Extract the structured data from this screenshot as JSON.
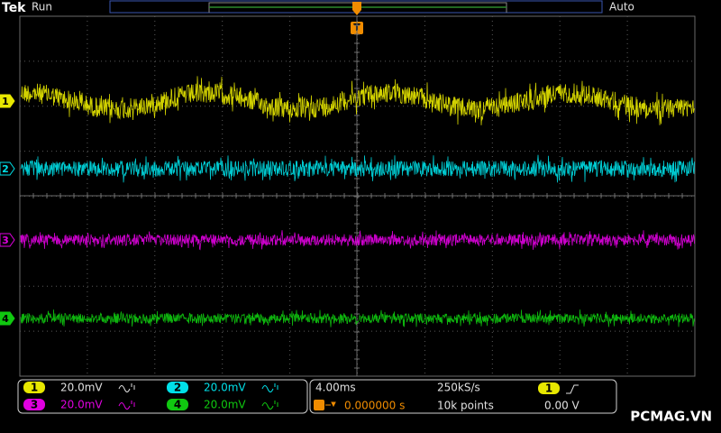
{
  "header": {
    "brand": "Tek",
    "status": "Run",
    "trigger_marker": "T",
    "trigger_mode": "Auto"
  },
  "channels": [
    {
      "marker": "1",
      "scale": "20.0mV",
      "color": "#e8e800"
    },
    {
      "marker": "2",
      "scale": "20.0mV",
      "color": "#00e0e8"
    },
    {
      "marker": "3",
      "scale": "20.0mV",
      "color": "#e000e0"
    },
    {
      "marker": "4",
      "scale": "20.0mV",
      "color": "#10c810"
    }
  ],
  "horizontal": {
    "time_per_div": "4.00ms",
    "sample_rate": "250kS/s",
    "trigger_position": "0.000000 s",
    "record_length": "10k points"
  },
  "trigger": {
    "source": "1",
    "level": "0.00 V"
  },
  "watermark": "PCMAG.VN"
}
